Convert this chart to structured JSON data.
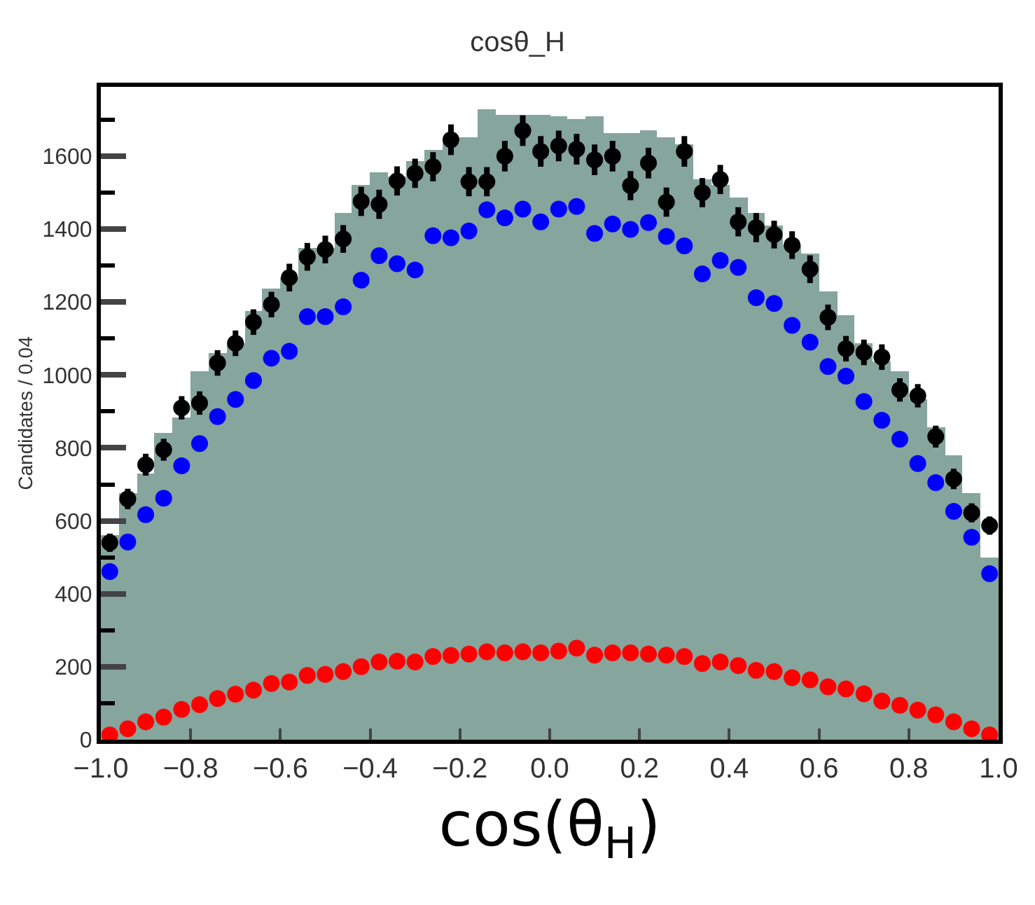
{
  "chart_data": {
    "type": "histogram",
    "title": "cosθ_H",
    "xlabel": "cos(θ$_{H}$)",
    "ylabel": "Candidates / 0.04",
    "xlim": [
      -1.0,
      1.0
    ],
    "ylim": [
      0,
      1790
    ],
    "xticks": [
      {
        "value": -1.0,
        "label": "−1.0"
      },
      {
        "value": -0.8,
        "label": "−0.8"
      },
      {
        "value": -0.6,
        "label": "−0.6"
      },
      {
        "value": -0.4,
        "label": "−0.4"
      },
      {
        "value": -0.2,
        "label": "−0.2"
      },
      {
        "value": 0,
        "label": "0.0"
      },
      {
        "value": 0.2,
        "label": "0.2"
      },
      {
        "value": 0.4,
        "label": "0.4"
      },
      {
        "value": 0.6,
        "label": "0.6"
      },
      {
        "value": 0.8,
        "label": "0.8"
      },
      {
        "value": 1.0,
        "label": "1.0"
      }
    ],
    "yticks": [
      0,
      200,
      400,
      600,
      800,
      1000,
      1200,
      1400,
      1600
    ],
    "series": [
      {
        "color": "#86a59c",
        "bins": [
          -1.0,
          -0.96,
          -0.92,
          -0.88,
          -0.84,
          -0.8,
          -0.76,
          -0.72,
          -0.68,
          -0.64,
          -0.6,
          -0.56,
          -0.52,
          -0.48,
          -0.44,
          -0.4,
          -0.36,
          -0.32,
          -0.28,
          -0.24,
          -0.2,
          -0.16,
          -0.12,
          -0.08,
          -0.04,
          0.0,
          0.04,
          0.08,
          0.12,
          0.16,
          0.2,
          0.24,
          0.28,
          0.32,
          0.36,
          0.4,
          0.44,
          0.48,
          0.52,
          0.56,
          0.6,
          0.64,
          0.68,
          0.72,
          0.76,
          0.8,
          0.84,
          0.88,
          0.92,
          0.96,
          1.0
        ],
        "values": [
          560,
          677,
          731,
          843,
          882,
          1011,
          1062,
          1087,
          1177,
          1235,
          1267,
          1350,
          1350,
          1446,
          1523,
          1555,
          1545,
          1587,
          1619,
          1638,
          1651,
          1728,
          1715,
          1715,
          1715,
          1709,
          1703,
          1709,
          1664,
          1664,
          1670,
          1651,
          1632,
          1536,
          1523,
          1485,
          1446,
          1408,
          1356,
          1331,
          1228,
          1164,
          1087,
          1036,
          1010,
          933,
          857,
          780,
          677,
          500
        ]
      },
      {
        "type": "scatter",
        "color": "#000000",
        "marker": "circle",
        "x": [
          -0.98,
          -0.94,
          -0.9,
          -0.86,
          -0.82,
          -0.78,
          -0.74,
          -0.7,
          -0.66,
          -0.62,
          -0.58,
          -0.54,
          -0.5,
          -0.46,
          -0.42,
          -0.38,
          -0.34,
          -0.3,
          -0.26,
          -0.22,
          -0.18,
          -0.14,
          -0.1,
          -0.06,
          -0.02,
          0.02,
          0.06,
          0.1,
          0.14,
          0.18,
          0.22,
          0.26,
          0.3,
          0.34,
          0.38,
          0.42,
          0.46,
          0.5,
          0.54,
          0.58,
          0.62,
          0.66,
          0.7,
          0.74,
          0.78,
          0.82,
          0.86,
          0.9,
          0.94,
          0.98
        ],
        "values": [
          540,
          660,
          754,
          795,
          910,
          923,
          1033,
          1087,
          1145,
          1193,
          1267,
          1324,
          1344,
          1373,
          1476,
          1468,
          1532,
          1553,
          1571,
          1645,
          1530,
          1530,
          1600,
          1670,
          1613,
          1628,
          1619,
          1590,
          1600,
          1519,
          1581,
          1474,
          1613,
          1500,
          1536,
          1420,
          1404,
          1385,
          1356,
          1290,
          1158,
          1072,
          1062,
          1049,
          959,
          943,
          831,
          715,
          622,
          587
        ],
        "errors": [
          25,
          28,
          30,
          30,
          32,
          32,
          35,
          35,
          35,
          35,
          38,
          38,
          38,
          38,
          40,
          40,
          40,
          40,
          40,
          42,
          40,
          40,
          42,
          42,
          42,
          42,
          42,
          42,
          42,
          40,
          42,
          40,
          42,
          40,
          40,
          40,
          40,
          38,
          38,
          38,
          35,
          35,
          35,
          35,
          32,
          32,
          30,
          28,
          26,
          25
        ]
      },
      {
        "type": "scatter",
        "color": "#0000ff",
        "marker": "circle",
        "x": [
          -0.98,
          -0.94,
          -0.9,
          -0.86,
          -0.82,
          -0.78,
          -0.74,
          -0.7,
          -0.66,
          -0.62,
          -0.58,
          -0.54,
          -0.5,
          -0.46,
          -0.42,
          -0.38,
          -0.34,
          -0.3,
          -0.26,
          -0.22,
          -0.18,
          -0.14,
          -0.1,
          -0.06,
          -0.02,
          0.02,
          0.06,
          0.1,
          0.14,
          0.18,
          0.22,
          0.26,
          0.3,
          0.34,
          0.38,
          0.42,
          0.46,
          0.5,
          0.54,
          0.58,
          0.62,
          0.66,
          0.7,
          0.74,
          0.78,
          0.82,
          0.86,
          0.9,
          0.94,
          0.98
        ],
        "values": [
          461,
          542,
          617,
          662,
          751,
          812,
          886,
          933,
          985,
          1046,
          1065,
          1160,
          1160,
          1187,
          1260,
          1327,
          1305,
          1288,
          1382,
          1376,
          1395,
          1453,
          1431,
          1455,
          1420,
          1455,
          1462,
          1388,
          1414,
          1399,
          1418,
          1380,
          1354,
          1277,
          1314,
          1295,
          1212,
          1196,
          1136,
          1090,
          1023,
          997,
          927,
          876,
          824,
          757,
          705,
          626,
          555,
          455
        ]
      },
      {
        "type": "scatter",
        "color": "#ff0000",
        "marker": "circle",
        "x": [
          -0.98,
          -0.94,
          -0.9,
          -0.86,
          -0.82,
          -0.78,
          -0.74,
          -0.7,
          -0.66,
          -0.62,
          -0.58,
          -0.54,
          -0.5,
          -0.46,
          -0.42,
          -0.38,
          -0.34,
          -0.3,
          -0.26,
          -0.22,
          -0.18,
          -0.14,
          -0.1,
          -0.06,
          -0.02,
          0.02,
          0.06,
          0.1,
          0.14,
          0.18,
          0.22,
          0.26,
          0.3,
          0.34,
          0.38,
          0.42,
          0.46,
          0.5,
          0.54,
          0.58,
          0.62,
          0.66,
          0.7,
          0.74,
          0.78,
          0.82,
          0.86,
          0.9,
          0.94,
          0.98
        ],
        "values": [
          13,
          30,
          49,
          62,
          83,
          96,
          113,
          125,
          136,
          154,
          158,
          176,
          179,
          187,
          200,
          213,
          215,
          213,
          228,
          231,
          235,
          241,
          238,
          241,
          238,
          243,
          251,
          232,
          238,
          238,
          235,
          232,
          228,
          209,
          213,
          203,
          190,
          187,
          170,
          164,
          145,
          139,
          126,
          106,
          94,
          81,
          68,
          49,
          30,
          13
        ]
      }
    ]
  }
}
